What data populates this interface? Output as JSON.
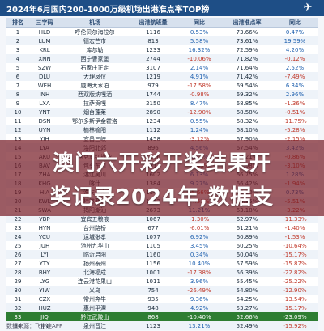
{
  "header": {
    "title": "2024年6月国内200-1000万级机场出港准点率TOP榜"
  },
  "columns": [
    "排名",
    "三字码",
    "机场",
    "出港航班量",
    "同比",
    "出港准点率",
    "同比"
  ],
  "rows": [
    [
      "1",
      "HLD",
      "呼伦贝尔海拉尔",
      "1116",
      "0.53%",
      "73.66%",
      "0.47%"
    ],
    [
      "2",
      "LUM",
      "德宏芒市",
      "813",
      "5.58%",
      "73.61%",
      "19.59%"
    ],
    [
      "3",
      "KRL",
      "库尔勒",
      "1233",
      "16.32%",
      "72.59%",
      "4.20%"
    ],
    [
      "4",
      "XNN",
      "西宁曹家堡",
      "2744",
      "-10.06%",
      "71.82%",
      "-0.12%"
    ],
    [
      "5",
      "SZW",
      "石家庄正定",
      "3107",
      "2.14%",
      "71.64%",
      "2.52%"
    ],
    [
      "6",
      "DLU",
      "大理凤仪",
      "1219",
      "4.91%",
      "71.42%",
      "-7.49%"
    ],
    [
      "7",
      "WEH",
      "威海大水泊",
      "979",
      "-17.58%",
      "69.54%",
      "6.34%"
    ],
    [
      "8",
      "INH",
      "西双版纳嘎洒",
      "1744",
      "-0.98%",
      "69.32%",
      "2.96%"
    ],
    [
      "9",
      "LXA",
      "拉萨贡嘎",
      "2150",
      "8.47%",
      "68.85%",
      "-1.36%"
    ],
    [
      "10",
      "YNT",
      "烟台蓬莱",
      "2890",
      "-12.90%",
      "68.58%",
      "-0.51%"
    ],
    [
      "11",
      "DSN",
      "鄂尔多斯伊金霍洛",
      "1234",
      "0.55%",
      "68.32%",
      "-11.75%"
    ],
    [
      "12",
      "UYN",
      "榆林榆阳",
      "1112",
      "1.24%",
      "68.10%",
      "-5.28%"
    ],
    [
      "13",
      "YIH",
      "宜昌三峡",
      "1458",
      "-3.12%",
      "67.90%",
      "-2.15%"
    ],
    [
      "14",
      "LYA",
      "洛阳北郊",
      "896",
      "4.56%",
      "67.54%",
      "3.42%"
    ],
    [
      "15",
      "AKU",
      "阿克苏红旗坡",
      "1046",
      "2.71%",
      "67.21%",
      "-0.86%"
    ],
    [
      "16",
      "BAV",
      "包头东河",
      "1317",
      "-1.45%",
      "66.98%",
      "-3.10%"
    ],
    [
      "17",
      "ZHA",
      "湛江吴川",
      "1602",
      "6.13%",
      "66.75%",
      "1.28%"
    ],
    [
      "18",
      "KHG",
      "喀什",
      "1384",
      "9.27%",
      "66.42%",
      "-1.94%"
    ],
    [
      "19",
      "HIA",
      "淮安涟水",
      "1140",
      "-5.66%",
      "66.20%",
      "0.73%"
    ],
    [
      "20",
      "KWL",
      "桂林两江",
      "1952",
      "-4.51%",
      "65.35%",
      "-5.51%"
    ],
    [
      "21",
      "SWA",
      "揭阳潮汕",
      "2673",
      "11.21%",
      "63.18%",
      "-3.22%"
    ],
    [
      "22",
      "YBP",
      "宜宾五粮液",
      "1067",
      "-1.30%",
      "62.97%",
      "-11.33%"
    ],
    [
      "23",
      "HYN",
      "台州路桥",
      "677",
      "-6.01%",
      "61.21%",
      "-1.40%"
    ],
    [
      "24",
      "YCU",
      "运城张孝",
      "1077",
      "6.92%",
      "60.89%",
      "-1.53%"
    ],
    [
      "25",
      "JUH",
      "池州九华山",
      "1105",
      "3.45%",
      "60.25%",
      "-10.64%"
    ],
    [
      "26",
      "LYI",
      "临沂启阳",
      "1160",
      "0.34%",
      "60.04%",
      "-15.17%"
    ],
    [
      "27",
      "YTY",
      "扬州泰州",
      "1156",
      "10.40%",
      "57.59%",
      "-15.87%"
    ],
    [
      "28",
      "BHY",
      "北海福成",
      "1001",
      "-17.38%",
      "56.39%",
      "-22.82%"
    ],
    [
      "29",
      "LYG",
      "连云港花果山",
      "1011",
      "3.96%",
      "55.45%",
      "-25.22%"
    ],
    [
      "30",
      "YIW",
      "义乌",
      "754",
      "-26.49%",
      "54.80%",
      "-12.90%"
    ],
    [
      "31",
      "CZX",
      "常州奔牛",
      "935",
      "9.36%",
      "54.25%",
      "-13.54%"
    ],
    [
      "32",
      "HUZ",
      "惠州平潭",
      "948",
      "4.92%",
      "53.27%",
      "-15.17%"
    ],
    [
      "33",
      "JIQ",
      "黔江武陵山",
      "868",
      "-10.40%",
      "52.66%",
      "-23.09%"
    ],
    [
      "34",
      "JJN",
      "泉州晋江",
      "1123",
      "13.21%",
      "52.49%",
      "-15.92%"
    ]
  ],
  "highlight_rank": "33",
  "overlay": {
    "line1": "澳门六开彩开奖结果开",
    "line2": "奖记录2024年,数据支"
  },
  "footer": {
    "text": "数据来源：飞常准APP"
  }
}
